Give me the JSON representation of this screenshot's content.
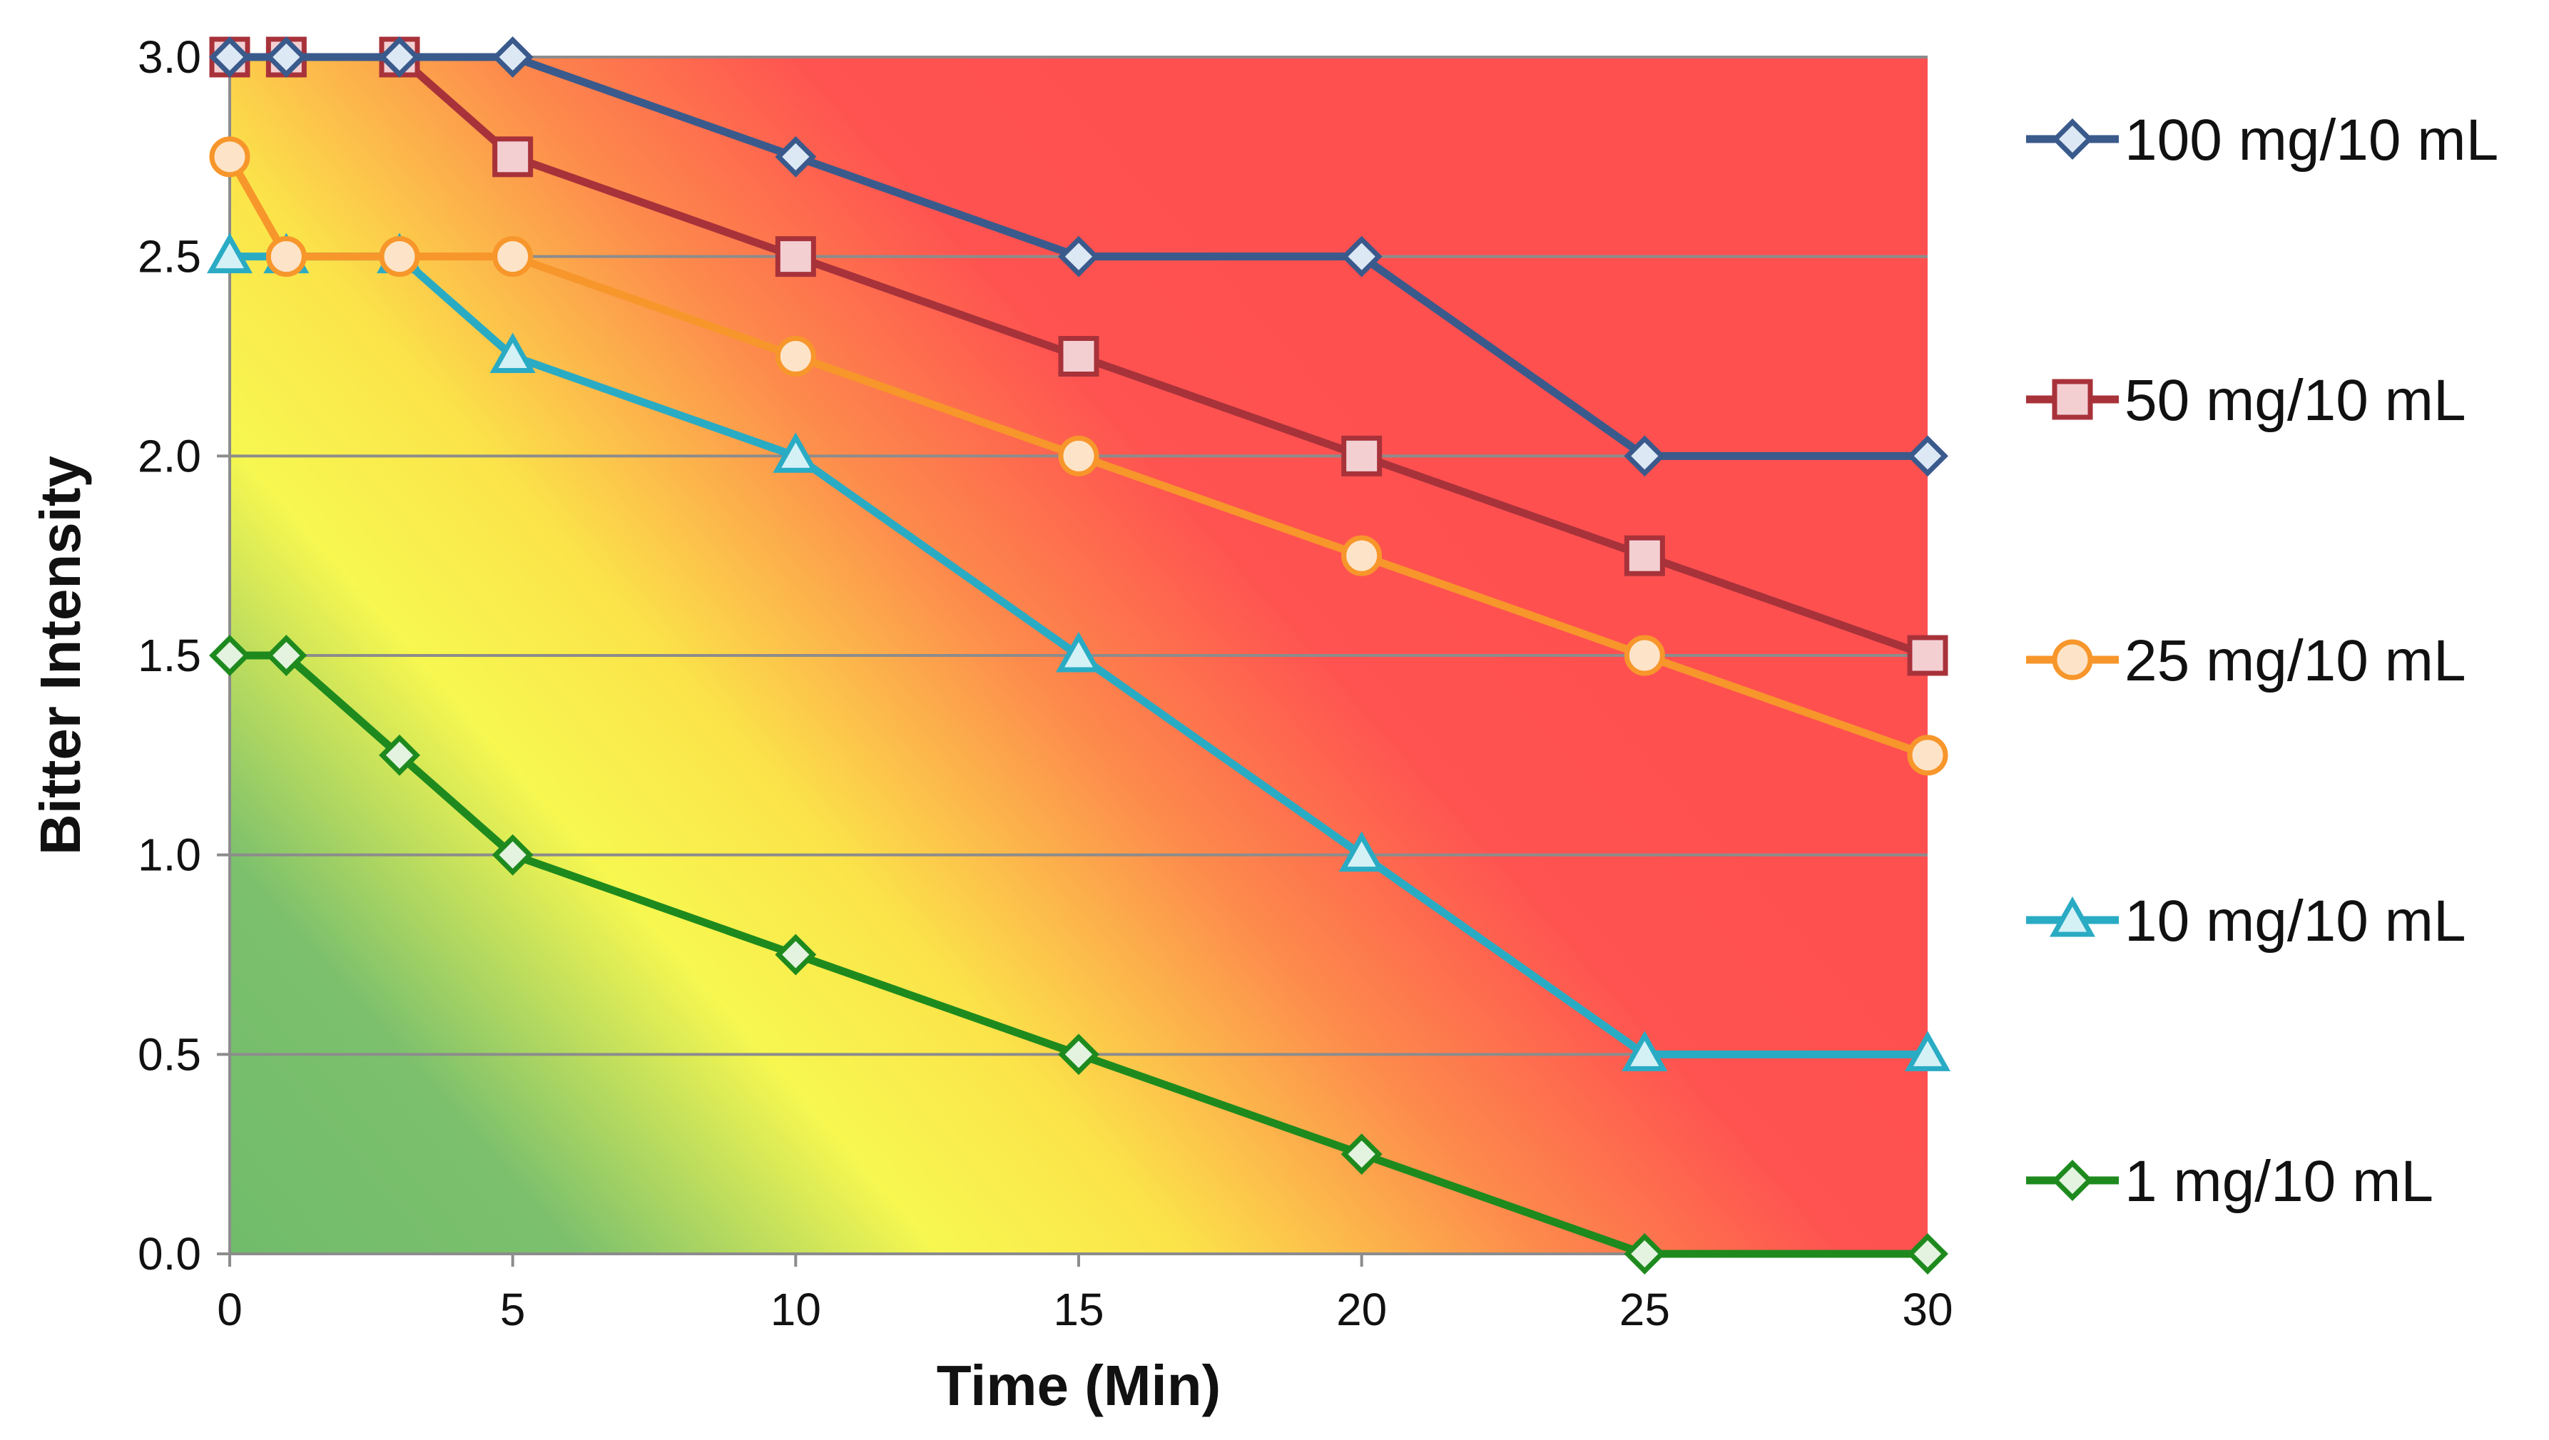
{
  "chart_data": {
    "type": "line",
    "title": "",
    "xlabel": "Time (Min)",
    "ylabel": "Bitter Intensity",
    "xlim": [
      0,
      30
    ],
    "ylim": [
      0,
      3
    ],
    "x_ticks": [
      0,
      5,
      10,
      15,
      20,
      25,
      30
    ],
    "y_ticks": [
      0,
      0.5,
      1,
      1.5,
      2,
      2.5,
      3
    ],
    "x_tick_labels": [
      "0",
      "5",
      "10",
      "15",
      "20",
      "25",
      "30"
    ],
    "y_tick_labels": [
      "0.0",
      "0.5",
      "1.0",
      "1.5",
      "2.0",
      "2.5",
      "3.0"
    ],
    "grid": "horizontal",
    "legend_position": "right",
    "background": "gradient from green (low) through yellow to red (high)",
    "series": [
      {
        "name": "100 mg/10 mL",
        "marker": "diamond",
        "color": "#3A5A8C",
        "fill": "#dde8f5",
        "x": [
          0,
          1,
          3,
          5,
          10,
          15,
          20,
          25,
          30
        ],
        "y": [
          3.0,
          3.0,
          3.0,
          3.0,
          2.75,
          2.5,
          2.5,
          2.0,
          2.0
        ]
      },
      {
        "name": "50 mg/10 mL",
        "marker": "square",
        "color": "#A8323A",
        "fill": "#f3cfd2",
        "x": [
          0,
          1,
          3,
          5,
          10,
          15,
          20,
          25,
          30
        ],
        "y": [
          3.0,
          3.0,
          3.0,
          2.75,
          2.5,
          2.25,
          2.0,
          1.75,
          1.5
        ]
      },
      {
        "name": "25 mg/10 mL",
        "marker": "circle",
        "color": "#F7962B",
        "fill": "#fde4c8",
        "x": [
          0,
          1,
          3,
          5,
          10,
          15,
          20,
          25,
          30
        ],
        "y": [
          2.75,
          2.5,
          2.5,
          2.5,
          2.25,
          2.0,
          1.75,
          1.5,
          1.25
        ]
      },
      {
        "name": "10 mg/10 mL",
        "marker": "triangle",
        "color": "#2AABC4",
        "fill": "#d4f1f6",
        "x": [
          0,
          1,
          3,
          5,
          10,
          15,
          20,
          25,
          30
        ],
        "y": [
          2.5,
          2.5,
          2.5,
          2.25,
          2.0,
          1.5,
          1.0,
          0.5,
          0.5
        ]
      },
      {
        "name": "1 mg/10 mL",
        "marker": "diamond",
        "color": "#1E8A1E",
        "fill": "#e3f3e0",
        "x": [
          0,
          1,
          3,
          5,
          10,
          15,
          20,
          25,
          30
        ],
        "y": [
          1.5,
          1.5,
          1.25,
          1.0,
          0.75,
          0.5,
          0.25,
          0.0,
          0.0
        ]
      }
    ]
  }
}
